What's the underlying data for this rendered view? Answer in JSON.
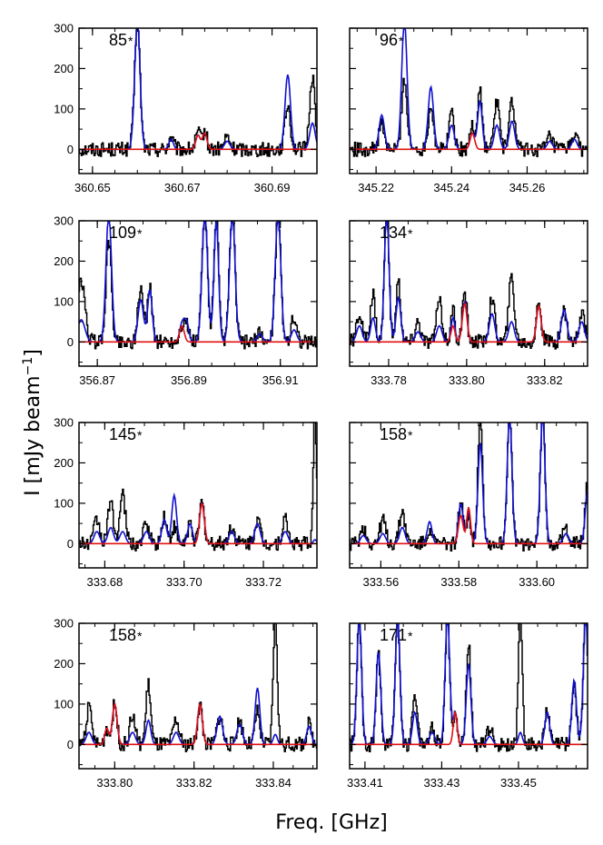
{
  "figure": {
    "ylabel": "I [mJy beam",
    "ylabel_sup": "−1",
    "ylabel_close": "]",
    "xlabel": "Freq. [GHz]"
  },
  "colors": {
    "observed": "#000000",
    "model_total": "#1010d0",
    "model_species": "#e01010"
  },
  "chart_data": [
    {
      "type": "line",
      "label": "85",
      "marker": "*",
      "xlim": [
        360.647,
        360.7
      ],
      "ylim": [
        -60,
        300
      ],
      "xticks": [
        360.65,
        360.67,
        360.69
      ],
      "xtick_labels": [
        "360.65",
        "360.67",
        "360.69"
      ],
      "yticks": [
        0,
        100,
        200,
        300
      ],
      "ytick_labels": [
        "0",
        "100",
        "200",
        "300"
      ],
      "peaks": [
        {
          "x": 360.66,
          "obs": 320,
          "total": 320,
          "species": 0,
          "w": 0.0006
        },
        {
          "x": 360.6675,
          "obs": 30,
          "total": 25,
          "species": 0,
          "w": 0.0005
        },
        {
          "x": 360.6735,
          "obs": 40,
          "total": 35,
          "species": 35,
          "w": 0.0005
        },
        {
          "x": 360.675,
          "obs": 45,
          "total": 40,
          "species": 40,
          "w": 0.0005
        },
        {
          "x": 360.68,
          "obs": 30,
          "total": 20,
          "species": 0,
          "w": 0.0006
        },
        {
          "x": 360.6935,
          "obs": 110,
          "total": 185,
          "species": 0,
          "w": 0.0006
        },
        {
          "x": 360.699,
          "obs": 180,
          "total": 65,
          "species": 0,
          "w": 0.0006
        }
      ]
    },
    {
      "type": "line",
      "label": "96",
      "marker": "*",
      "xlim": [
        345.213,
        345.276
      ],
      "ylim": [
        -60,
        300
      ],
      "xticks": [
        345.22,
        345.24,
        345.26
      ],
      "xtick_labels": [
        "345.22",
        "345.24",
        "345.26"
      ],
      "yticks": [
        0,
        100,
        200,
        300
      ],
      "ytick_labels": [
        "0",
        "100",
        "200",
        "300"
      ],
      "peaks": [
        {
          "x": 345.2215,
          "obs": 60,
          "total": 85,
          "species": 0,
          "w": 0.0007
        },
        {
          "x": 345.2275,
          "obs": 175,
          "total": 320,
          "species": 0,
          "w": 0.0007
        },
        {
          "x": 345.2345,
          "obs": 110,
          "total": 155,
          "species": 0,
          "w": 0.0007
        },
        {
          "x": 345.24,
          "obs": 90,
          "total": 60,
          "species": 0,
          "w": 0.0007
        },
        {
          "x": 345.2455,
          "obs": 60,
          "total": 40,
          "species": 40,
          "w": 0.0006
        },
        {
          "x": 345.2475,
          "obs": 150,
          "total": 120,
          "species": 0,
          "w": 0.0006
        },
        {
          "x": 345.252,
          "obs": 120,
          "total": 60,
          "species": 0,
          "w": 0.0007
        },
        {
          "x": 345.256,
          "obs": 120,
          "total": 70,
          "species": 0,
          "w": 0.0007
        },
        {
          "x": 345.266,
          "obs": 30,
          "total": 20,
          "species": 0,
          "w": 0.0007
        },
        {
          "x": 345.2725,
          "obs": 40,
          "total": 25,
          "species": 0,
          "w": 0.0007
        }
      ]
    },
    {
      "type": "line",
      "label": "109",
      "marker": "*",
      "xlim": [
        356.866,
        356.918
      ],
      "ylim": [
        -60,
        300
      ],
      "xticks": [
        356.87,
        356.89,
        356.91
      ],
      "xtick_labels": [
        "356.87",
        "356.89",
        "356.91"
      ],
      "yticks": [
        0,
        100,
        200,
        300
      ],
      "ytick_labels": [
        "0",
        "100",
        "200",
        "300"
      ],
      "peaks": [
        {
          "x": 356.8665,
          "obs": 150,
          "total": 55,
          "species": 0,
          "w": 0.0008
        },
        {
          "x": 356.8725,
          "obs": 250,
          "total": 320,
          "species": 0,
          "w": 0.0006
        },
        {
          "x": 356.8795,
          "obs": 135,
          "total": 105,
          "species": 0,
          "w": 0.0006
        },
        {
          "x": 356.8815,
          "obs": 140,
          "total": 130,
          "species": 0,
          "w": 0.0005
        },
        {
          "x": 356.8885,
          "obs": 40,
          "total": 45,
          "species": 40,
          "w": 0.0005
        },
        {
          "x": 356.8895,
          "obs": 40,
          "total": 50,
          "species": 0,
          "w": 0.0005
        },
        {
          "x": 356.8935,
          "obs": 320,
          "total": 320,
          "species": 0,
          "w": 0.0006
        },
        {
          "x": 356.896,
          "obs": 320,
          "total": 300,
          "species": 0,
          "w": 0.0005
        },
        {
          "x": 356.8995,
          "obs": 320,
          "total": 320,
          "species": 0,
          "w": 0.0006
        },
        {
          "x": 356.9055,
          "obs": 20,
          "total": 20,
          "species": 0,
          "w": 0.0006
        },
        {
          "x": 356.9095,
          "obs": 320,
          "total": 320,
          "species": 0,
          "w": 0.0006
        },
        {
          "x": 356.913,
          "obs": 60,
          "total": 30,
          "species": 0,
          "w": 0.0006
        }
      ]
    },
    {
      "type": "line",
      "label": "134",
      "marker": "*",
      "xlim": [
        333.77,
        333.831
      ],
      "ylim": [
        -60,
        300
      ],
      "xticks": [
        333.78,
        333.8,
        333.82
      ],
      "xtick_labels": [
        "333.78",
        "333.80",
        "333.82"
      ],
      "yticks": [
        0,
        100,
        200,
        300
      ],
      "ytick_labels": [
        "0",
        "100",
        "200",
        "300"
      ],
      "peaks": [
        {
          "x": 333.7725,
          "obs": 70,
          "total": 40,
          "species": 0,
          "w": 0.0007
        },
        {
          "x": 333.776,
          "obs": 120,
          "total": 60,
          "species": 0,
          "w": 0.0006
        },
        {
          "x": 333.7795,
          "obs": 320,
          "total": 320,
          "species": 0,
          "w": 0.0006
        },
        {
          "x": 333.7825,
          "obs": 150,
          "total": 110,
          "species": 0,
          "w": 0.0006
        },
        {
          "x": 333.7875,
          "obs": 50,
          "total": 25,
          "species": 0,
          "w": 0.0007
        },
        {
          "x": 333.793,
          "obs": 100,
          "total": 40,
          "species": 0,
          "w": 0.0007
        },
        {
          "x": 333.7965,
          "obs": 80,
          "total": 60,
          "species": 40,
          "w": 0.0005
        },
        {
          "x": 333.7995,
          "obs": 120,
          "total": 100,
          "species": 95,
          "w": 0.0006
        },
        {
          "x": 333.8065,
          "obs": 110,
          "total": 70,
          "species": 0,
          "w": 0.0007
        },
        {
          "x": 333.8115,
          "obs": 160,
          "total": 50,
          "species": 0,
          "w": 0.0007
        },
        {
          "x": 333.8185,
          "obs": 100,
          "total": 90,
          "species": 90,
          "w": 0.0006
        },
        {
          "x": 333.825,
          "obs": 80,
          "total": 80,
          "species": 0,
          "w": 0.0007
        },
        {
          "x": 333.8295,
          "obs": 70,
          "total": 50,
          "species": 0,
          "w": 0.0007
        }
      ]
    },
    {
      "type": "line",
      "label": "145",
      "marker": "*",
      "xlim": [
        333.6735,
        333.7335
      ],
      "ylim": [
        -60,
        300
      ],
      "xticks": [
        333.68,
        333.7,
        333.72
      ],
      "xtick_labels": [
        "333.68",
        "333.70",
        "333.72"
      ],
      "yticks": [
        0,
        100,
        200,
        300
      ],
      "ytick_labels": [
        "0",
        "100",
        "200",
        "300"
      ],
      "peaks": [
        {
          "x": 333.678,
          "obs": 60,
          "total": 30,
          "species": 0,
          "w": 0.0007
        },
        {
          "x": 333.6815,
          "obs": 100,
          "total": 40,
          "species": 0,
          "w": 0.0007
        },
        {
          "x": 333.6845,
          "obs": 120,
          "total": 30,
          "species": 0,
          "w": 0.0007
        },
        {
          "x": 333.6905,
          "obs": 50,
          "total": 30,
          "species": 0,
          "w": 0.0007
        },
        {
          "x": 333.695,
          "obs": 70,
          "total": 60,
          "species": 0,
          "w": 0.0006
        },
        {
          "x": 333.6975,
          "obs": 40,
          "total": 120,
          "species": 0,
          "w": 0.0006
        },
        {
          "x": 333.7015,
          "obs": 50,
          "total": 50,
          "species": 0,
          "w": 0.0006
        },
        {
          "x": 333.7045,
          "obs": 100,
          "total": 100,
          "species": 100,
          "w": 0.0006
        },
        {
          "x": 333.712,
          "obs": 40,
          "total": 30,
          "species": 0,
          "w": 0.0007
        },
        {
          "x": 333.7185,
          "obs": 60,
          "total": 50,
          "species": 0,
          "w": 0.0007
        },
        {
          "x": 333.7255,
          "obs": 60,
          "total": 30,
          "species": 0,
          "w": 0.0007
        },
        {
          "x": 333.733,
          "obs": 320,
          "total": 10,
          "species": 0,
          "w": 0.0004
        }
      ]
    },
    {
      "type": "line",
      "label": "158",
      "marker": "*",
      "xlim": [
        333.552,
        333.613
      ],
      "ylim": [
        -60,
        300
      ],
      "xticks": [
        333.56,
        333.58,
        333.6
      ],
      "xtick_labels": [
        "333.56",
        "333.58",
        "333.60"
      ],
      "yticks": [
        0,
        100,
        200,
        300
      ],
      "ytick_labels": [
        "0",
        "100",
        "200",
        "300"
      ],
      "peaks": [
        {
          "x": 333.5555,
          "obs": 40,
          "total": 20,
          "species": 0,
          "w": 0.0007
        },
        {
          "x": 333.5605,
          "obs": 60,
          "total": 25,
          "species": 0,
          "w": 0.0007
        },
        {
          "x": 333.5655,
          "obs": 80,
          "total": 40,
          "species": 0,
          "w": 0.0007
        },
        {
          "x": 333.5725,
          "obs": 40,
          "total": 55,
          "species": 0,
          "w": 0.0006
        },
        {
          "x": 333.5805,
          "obs": 100,
          "total": 100,
          "species": 70,
          "w": 0.0006
        },
        {
          "x": 333.5825,
          "obs": 80,
          "total": 80,
          "species": 90,
          "w": 0.0005
        },
        {
          "x": 333.5855,
          "obs": 320,
          "total": 250,
          "species": 0,
          "w": 0.0006
        },
        {
          "x": 333.593,
          "obs": 320,
          "total": 320,
          "species": 0,
          "w": 0.0006
        },
        {
          "x": 333.6015,
          "obs": 320,
          "total": 320,
          "species": 0,
          "w": 0.0006
        },
        {
          "x": 333.6075,
          "obs": 40,
          "total": 25,
          "species": 0,
          "w": 0.0007
        },
        {
          "x": 333.613,
          "obs": 150,
          "total": 130,
          "species": 0,
          "w": 0.0006
        }
      ]
    },
    {
      "type": "line",
      "label": "158",
      "marker": "*",
      "xlim": [
        333.791,
        333.851
      ],
      "ylim": [
        -60,
        300
      ],
      "xticks": [
        333.8,
        333.82,
        333.84
      ],
      "xtick_labels": [
        "333.80",
        "333.82",
        "333.84"
      ],
      "yticks": [
        0,
        100,
        200,
        300
      ],
      "ytick_labels": [
        "0",
        "100",
        "200",
        "300"
      ],
      "peaks": [
        {
          "x": 333.7935,
          "obs": 90,
          "total": 30,
          "species": 0,
          "w": 0.0007
        },
        {
          "x": 333.798,
          "obs": 40,
          "total": 40,
          "species": 40,
          "w": 0.0005
        },
        {
          "x": 333.8,
          "obs": 100,
          "total": 100,
          "species": 100,
          "w": 0.0006
        },
        {
          "x": 333.8045,
          "obs": 70,
          "total": 30,
          "species": 0,
          "w": 0.0007
        },
        {
          "x": 333.8085,
          "obs": 150,
          "total": 60,
          "species": 0,
          "w": 0.0006
        },
        {
          "x": 333.8155,
          "obs": 60,
          "total": 30,
          "species": 0,
          "w": 0.0007
        },
        {
          "x": 333.8215,
          "obs": 100,
          "total": 100,
          "species": 100,
          "w": 0.0006
        },
        {
          "x": 333.8265,
          "obs": 70,
          "total": 70,
          "species": 0,
          "w": 0.0007
        },
        {
          "x": 333.8315,
          "obs": 60,
          "total": 50,
          "species": 0,
          "w": 0.0007
        },
        {
          "x": 333.836,
          "obs": 80,
          "total": 140,
          "species": 0,
          "w": 0.0006
        },
        {
          "x": 333.8405,
          "obs": 320,
          "total": 25,
          "species": 0,
          "w": 0.0005
        },
        {
          "x": 333.849,
          "obs": 50,
          "total": 45,
          "species": 0,
          "w": 0.0006
        }
      ]
    },
    {
      "type": "line",
      "label": "171",
      "marker": "*",
      "xlim": [
        333.406,
        333.468
      ],
      "ylim": [
        -60,
        300
      ],
      "xticks": [
        333.41,
        333.43,
        333.45
      ],
      "xtick_labels": [
        "333.41",
        "333.43",
        "333.45"
      ],
      "yticks": [
        0,
        100,
        200,
        300
      ],
      "ytick_labels": [
        "0",
        "100",
        "200",
        "300"
      ],
      "peaks": [
        {
          "x": 333.4085,
          "obs": 320,
          "total": 320,
          "species": 0,
          "w": 0.0006
        },
        {
          "x": 333.4135,
          "obs": 220,
          "total": 230,
          "species": 0,
          "w": 0.0006
        },
        {
          "x": 333.4185,
          "obs": 320,
          "total": 320,
          "species": 0,
          "w": 0.0006
        },
        {
          "x": 333.423,
          "obs": 130,
          "total": 80,
          "species": 0,
          "w": 0.0006
        },
        {
          "x": 333.4275,
          "obs": 40,
          "total": 30,
          "species": 0,
          "w": 0.0007
        },
        {
          "x": 333.4315,
          "obs": 320,
          "total": 320,
          "species": 0,
          "w": 0.0006
        },
        {
          "x": 333.4335,
          "obs": 80,
          "total": 80,
          "species": 80,
          "w": 0.0005
        },
        {
          "x": 333.437,
          "obs": 250,
          "total": 200,
          "species": 0,
          "w": 0.0006
        },
        {
          "x": 333.4425,
          "obs": 40,
          "total": 20,
          "species": 0,
          "w": 0.0007
        },
        {
          "x": 333.4505,
          "obs": 320,
          "total": 30,
          "species": 0,
          "w": 0.0005
        },
        {
          "x": 333.4575,
          "obs": 80,
          "total": 80,
          "species": 0,
          "w": 0.0006
        },
        {
          "x": 333.4645,
          "obs": 150,
          "total": 160,
          "species": 0,
          "w": 0.0006
        },
        {
          "x": 333.4675,
          "obs": 320,
          "total": 320,
          "species": 0,
          "w": 0.0006
        }
      ]
    }
  ]
}
